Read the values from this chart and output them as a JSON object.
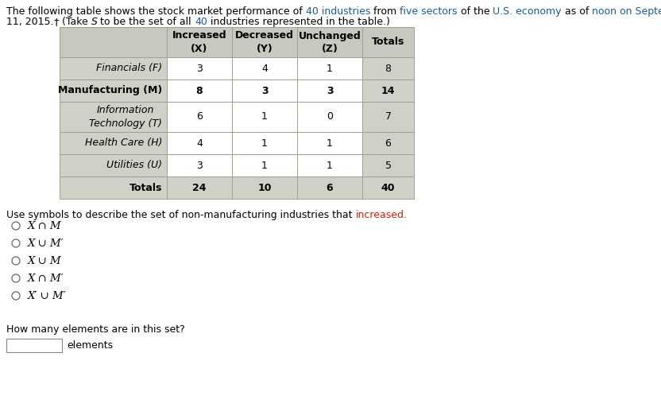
{
  "table_data": [
    [
      3,
      4,
      1,
      8
    ],
    [
      8,
      3,
      3,
      14
    ],
    [
      6,
      1,
      0,
      7
    ],
    [
      4,
      1,
      1,
      6
    ],
    [
      3,
      1,
      1,
      5
    ],
    [
      24,
      10,
      6,
      40
    ]
  ],
  "col_headers": [
    "Increased\n(X)",
    "Decreased\n(Y)",
    "Unchanged\n(Z)",
    "Totals"
  ],
  "row_labels": [
    "Financials (F)",
    "Manufacturing (M)",
    "Information\nTechnology (T)",
    "Health Care (H)",
    "Utilities (U)",
    "Totals"
  ],
  "row_bold": [
    false,
    true,
    false,
    false,
    false,
    true
  ],
  "row_italic": [
    true,
    false,
    true,
    true,
    true,
    false
  ],
  "header_bg": "#c8c8c0",
  "label_bg": "#d0cfc8",
  "cell_bg": "#ffffff",
  "totals_row_bg": "#d0cfc8",
  "totals_col_bg": "#d0cfc8",
  "border_color": "#a0a090",
  "blue_color": "#1a5c9a",
  "black_color": "#000000",
  "red_color": "#cc2200",
  "question_highlight_color": "#cc2200",
  "options": [
    [
      "O ",
      "X",
      " ∩ ",
      "M",
      ""
    ],
    [
      "O ",
      "X",
      " ∪ ",
      "M",
      "′"
    ],
    [
      "O ",
      "X",
      " ∪ ",
      "M",
      ""
    ],
    [
      "O ",
      "X",
      " ∩ ",
      "M",
      "′"
    ],
    [
      "O ",
      "X",
      "′",
      " ∪ ",
      "M′"
    ]
  ],
  "option_labels": [
    "X ∩ M",
    "X ∪ M′",
    "X ∪ M",
    "X ∩ M′",
    "X′ ∪ M′"
  ],
  "how_many_text": "How many elements are in this set?",
  "elements_text": "elements"
}
